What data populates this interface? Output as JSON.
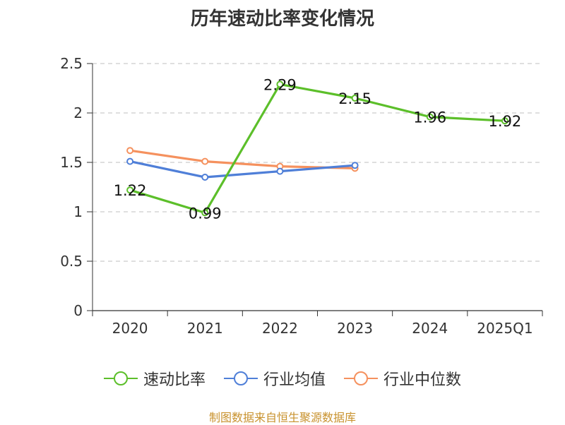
{
  "chart_data": {
    "type": "line",
    "title": "历年速动比率变化情况",
    "categories": [
      "2020",
      "2021",
      "2022",
      "2023",
      "2024",
      "2025Q1"
    ],
    "ylim": [
      0,
      2.5
    ],
    "yticks": [
      "0",
      "0.5",
      "1",
      "1.5",
      "2",
      "2.5"
    ],
    "ytick_values": [
      0,
      0.5,
      1,
      1.5,
      2,
      2.5
    ],
    "grid": true,
    "legend_position": "bottom",
    "series": [
      {
        "name": "速动比率",
        "color": "#5cbf2a",
        "values": [
          1.22,
          0.99,
          2.29,
          2.15,
          1.96,
          1.92
        ],
        "labels": [
          "1.22",
          "0.99",
          "2.29",
          "2.15",
          "1.96",
          "1.92"
        ],
        "show_labels": true
      },
      {
        "name": "行业均值",
        "color": "#4f7fd8",
        "values": [
          1.51,
          1.35,
          1.41,
          1.47,
          null,
          null
        ],
        "show_labels": false
      },
      {
        "name": "行业中位数",
        "color": "#f5915e",
        "values": [
          1.62,
          1.51,
          1.46,
          1.44,
          null,
          null
        ],
        "show_labels": false
      }
    ]
  },
  "source": "制图数据来自恒生聚源数据库"
}
